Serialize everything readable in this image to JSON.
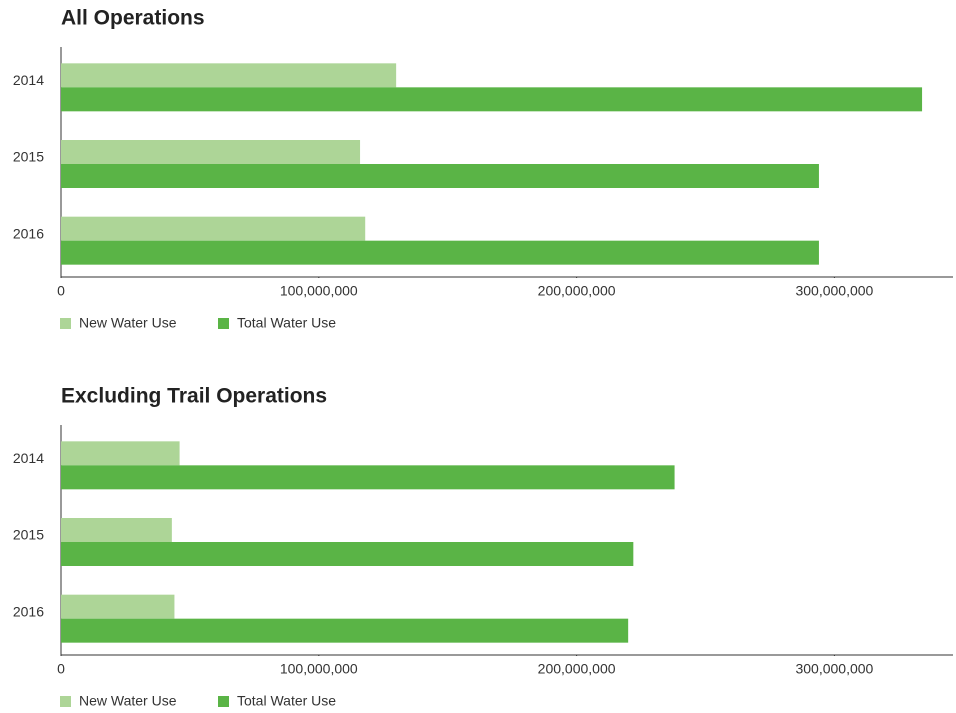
{
  "chart_data": [
    {
      "type": "bar",
      "orientation": "horizontal",
      "title": "All Operations",
      "categories": [
        "2014",
        "2015",
        "2016"
      ],
      "series": [
        {
          "name": "New Water Use",
          "color": "#add597",
          "values": [
            130000000,
            116000000,
            118000000
          ]
        },
        {
          "name": "Total Water Use",
          "color": "#5ab446",
          "values": [
            334000000,
            294000000,
            294000000
          ]
        }
      ],
      "xlim": [
        0,
        346000000
      ],
      "xticks": [
        0,
        {
          "value": 100000000,
          "label": "100,000,000"
        },
        {
          "value": 200000000,
          "label": "200,000,000"
        },
        {
          "value": 300000000,
          "label": "300,000,000"
        }
      ],
      "legend": "bottom-left"
    },
    {
      "type": "bar",
      "orientation": "horizontal",
      "title": "Excluding Trail Operations",
      "categories": [
        "2014",
        "2015",
        "2016"
      ],
      "series": [
        {
          "name": "New Water Use",
          "color": "#add597",
          "values": [
            46000000,
            43000000,
            44000000
          ]
        },
        {
          "name": "Total Water Use",
          "color": "#5ab446",
          "values": [
            238000000,
            222000000,
            220000000
          ]
        }
      ],
      "xlim": [
        0,
        346000000
      ],
      "xticks": [
        0,
        {
          "value": 100000000,
          "label": "100,000,000"
        },
        {
          "value": 200000000,
          "label": "200,000,000"
        },
        {
          "value": 300000000,
          "label": "300,000,000"
        }
      ],
      "legend": "bottom-left"
    }
  ]
}
